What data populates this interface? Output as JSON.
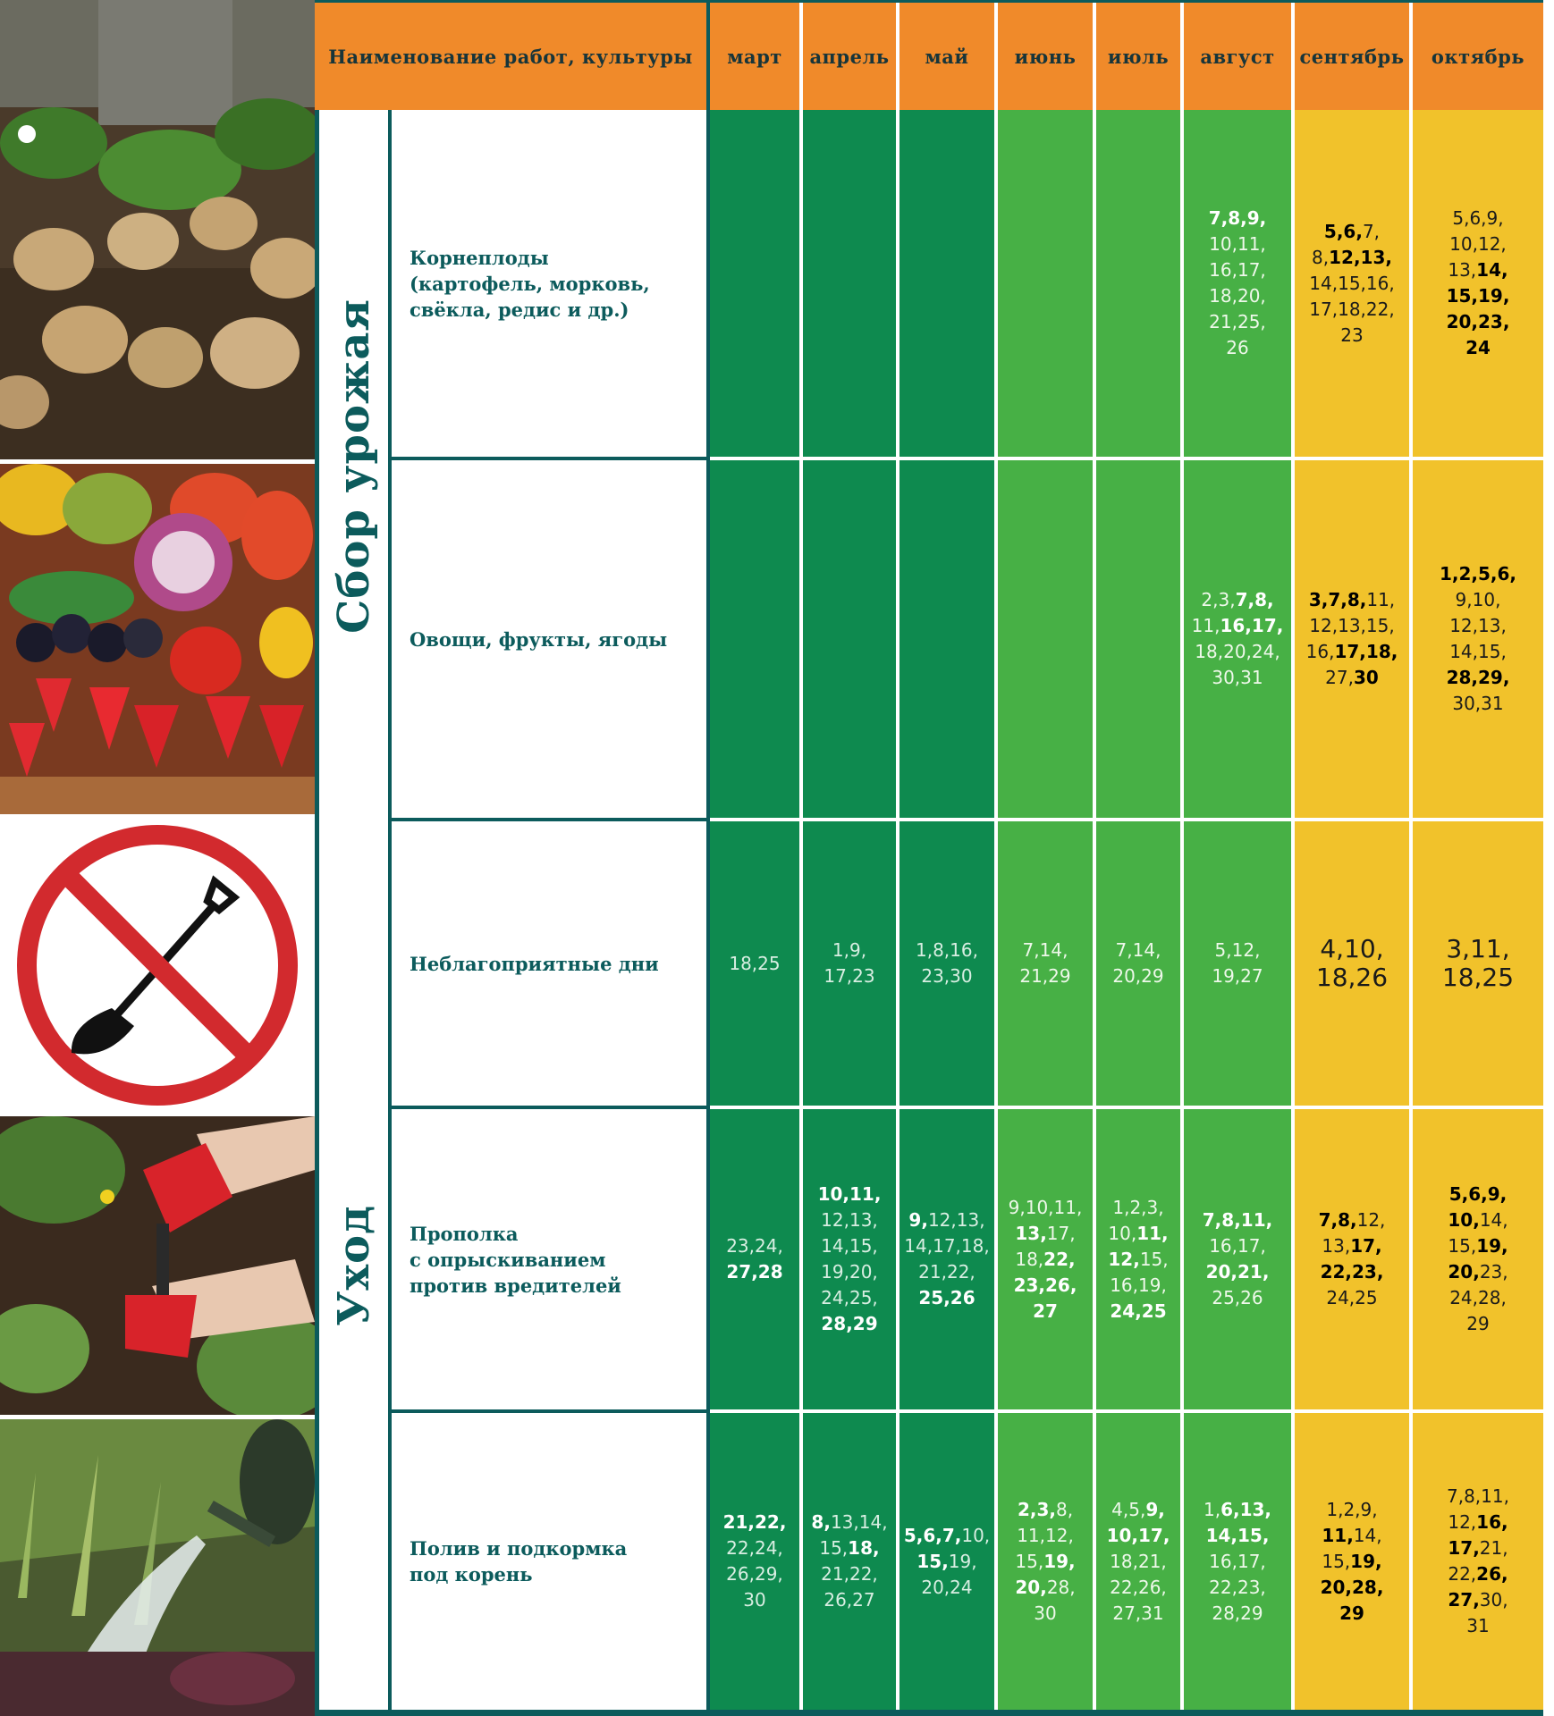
{
  "header": {
    "title_label": "Наименование работ, культуры",
    "months": [
      "март",
      "апрель",
      "май",
      "июнь",
      "июль",
      "август",
      "сентябрь",
      "октябрь"
    ]
  },
  "sections": [
    {
      "label": "Сбор урожая"
    },
    {
      "label": "Уход"
    }
  ],
  "rows": [
    {
      "label": "Корнеплоды (картофель, морковь, свёкла, редис и др.)",
      "cells": [
        "",
        "",
        "",
        "",
        "",
        "**7,8,9,**\n10,11,\n16,17,\n18,20,\n21,25,\n26",
        "**5,6,**7,\n8,**12,13,**\n14,15,16,\n17,18,22,\n23",
        "5,6,9,\n10,12,\n13,**14,**\n**15,19,**\n**20,23,**\n**24**"
      ]
    },
    {
      "label": "Овощи, фрукты, ягоды",
      "cells": [
        "",
        "",
        "",
        "",
        "",
        "2,3,**7,8,**\n11,**16,17,**\n18,20,24,\n30,31",
        "**3,7,8,**11,\n12,13,15,\n16,**17,18,**\n27,**30**",
        "**1,2,5,6,**\n9,10,\n12,13,\n14,15,\n**28,29,**\n30,31"
      ]
    },
    {
      "label": "Неблагоприятные дни",
      "cells": [
        "18,25",
        "1,9,\n17,23",
        "1,8,16,\n23,30",
        "7,14,\n21,29",
        "7,14,\n20,29",
        "5,12,\n19,27",
        "4,10,\n18,26",
        "3,11,\n18,25"
      ]
    },
    {
      "label": "Прополка\nс опрыскиванием против вредителей",
      "cells": [
        "23,24,\n**27,28**",
        "**10,11,**\n12,13,\n14,15,\n19,20,\n24,25,\n**28,29**",
        "**9,**12,13,\n14,17,18,\n21,22,\n**25,26**",
        "9,10,11,\n**13,**17,\n18,**22,**\n**23,26,**\n**27**",
        "1,2,3,\n10,**11,**\n**12,**15,\n16,19,\n**24,25**",
        "**7,8,11,**\n16,17,\n**20,21,**\n25,26",
        "**7,8,**12,\n13,**17,**\n**22,23,**\n24,25",
        "**5,6,9,**\n**10,**14,\n15,**19,**\n**20,**23,\n24,28,\n29"
      ]
    },
    {
      "label": "Полив и подкормка\nпод корень",
      "cells": [
        "**21,22,**\n22,24,\n26,29,\n30",
        "**8,**13,14,\n15,**18,**\n21,22,\n26,27",
        "**5,6,7,**10,\n**15,**19,\n20,24",
        "**2,3,**8,\n11,12,\n15,**19,**\n**20,**28,\n30",
        "4,5,**9,**\n**10,17,**\n18,21,\n22,26,\n27,31",
        "1,**6,13,**\n**14,15,**\n16,17,\n22,23,\n28,29",
        "1,2,9,\n**11,**14,\n15,**19,**\n**20,28,**\n**29**",
        "7,8,11,\n12,**16,**\n**17,**21,\n22,**26,**\n**27,**30,\n31"
      ]
    }
  ],
  "colors": {
    "header_orange": "#f08a2a",
    "teal": "#0c5b5c",
    "dark_green": "#0e8a4f",
    "green": "#47b045",
    "yellow": "#f1c22b"
  },
  "images": [
    "potatoes-photo",
    "vegetables-fruits-photo",
    "no-digging-sign-icon",
    "weeding-photo",
    "watering-photo"
  ]
}
